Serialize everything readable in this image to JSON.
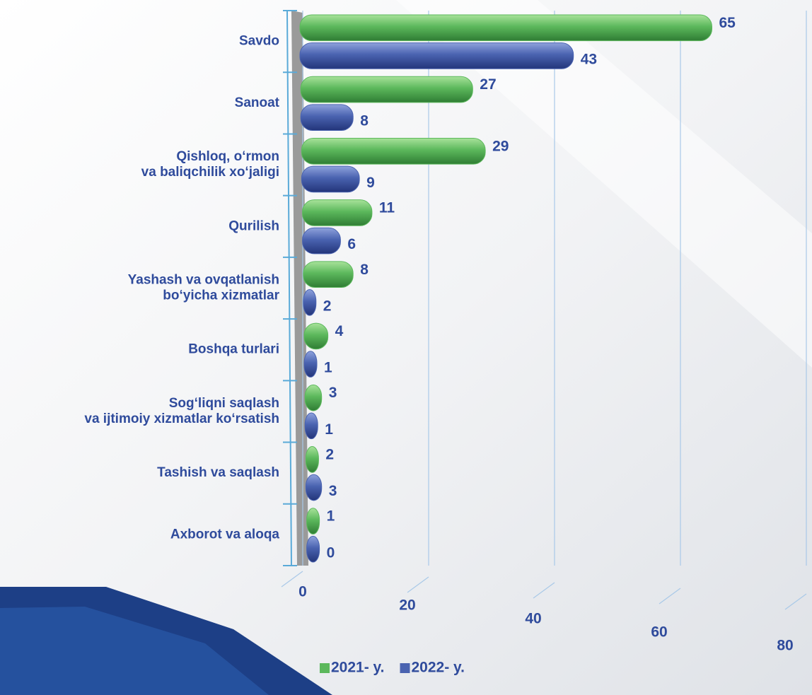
{
  "chart_data": {
    "type": "bar",
    "orientation": "horizontal",
    "categories": [
      "Savdo",
      "Sanoat",
      "Qishloq, o‘rmon\nva baliqchilik xo‘jaligi",
      "Qurilish",
      "Yashash va ovqatlanish\nbo‘yicha xizmatlar",
      "Boshqa turlari",
      "Sog‘liqni saqlash\nva ijtimoiy xizmatlar ko‘rsatish",
      "Tashish va saqlash",
      "Axborot va aloqa"
    ],
    "series": [
      {
        "name": "2021- y.",
        "color": "#5cb85c",
        "values": [
          65,
          27,
          29,
          11,
          8,
          4,
          3,
          2,
          1
        ]
      },
      {
        "name": "2022- y.",
        "color": "#4a63b0",
        "values": [
          43,
          8,
          9,
          6,
          2,
          1,
          1,
          3,
          0
        ]
      }
    ],
    "xlim": [
      0,
      80
    ],
    "xticks": [
      0,
      20,
      40,
      60,
      80
    ],
    "grid": true,
    "legend": "bottom"
  }
}
